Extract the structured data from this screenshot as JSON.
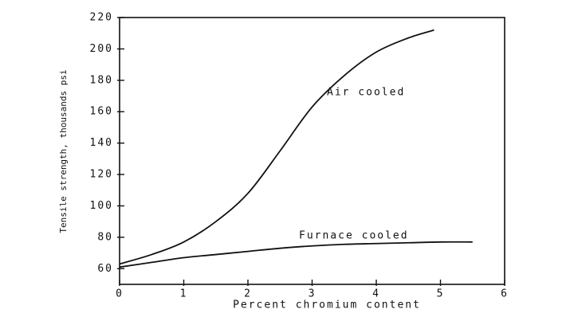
{
  "chart_data": {
    "type": "line",
    "x_label": "Percent chromium content",
    "y_label": "Tensile strength, thousands psi",
    "xlim": [
      0,
      6
    ],
    "xticks": [
      0,
      1,
      2,
      3,
      4,
      5,
      6
    ],
    "ylim": [
      50,
      220
    ],
    "yticks": [
      60,
      80,
      100,
      120,
      140,
      160,
      180,
      200,
      220
    ],
    "series": [
      {
        "name": "Air cooled",
        "color": "#111111",
        "x": [
          0,
          0.5,
          1,
          1.5,
          2,
          2.5,
          3,
          3.5,
          4,
          4.5,
          4.9
        ],
        "values": [
          63,
          69,
          77,
          90,
          108,
          135,
          163,
          183,
          198,
          207,
          212
        ]
      },
      {
        "name": "Furnace cooled",
        "color": "#111111",
        "x": [
          0,
          0.5,
          1,
          1.5,
          2,
          2.5,
          3,
          3.5,
          4,
          4.5,
          5,
          5.5
        ],
        "values": [
          61,
          64,
          67,
          69,
          71,
          73,
          74.5,
          75.5,
          76,
          76.5,
          77,
          77
        ]
      }
    ]
  }
}
